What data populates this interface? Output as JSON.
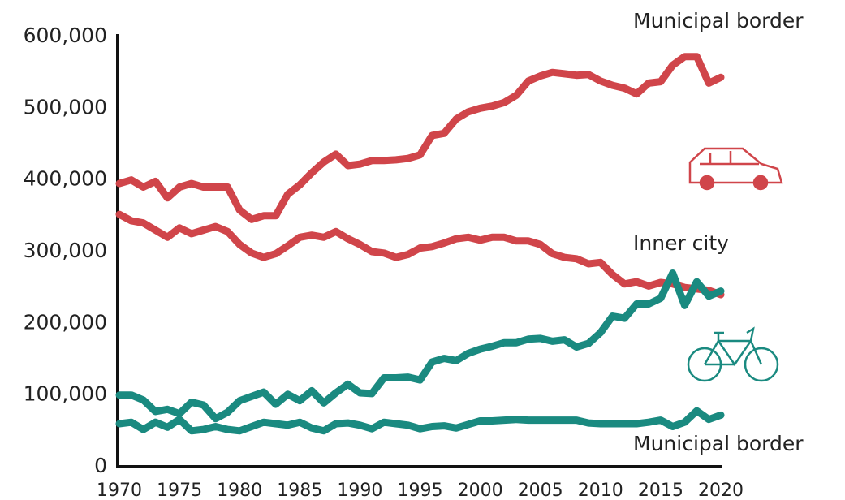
{
  "chart_data": {
    "type": "line",
    "x": [
      1970,
      1971,
      1972,
      1973,
      1974,
      1975,
      1976,
      1977,
      1978,
      1979,
      1980,
      1981,
      1982,
      1983,
      1984,
      1985,
      1986,
      1987,
      1988,
      1989,
      1990,
      1991,
      1992,
      1993,
      1994,
      1995,
      1996,
      1997,
      1998,
      1999,
      2000,
      2001,
      2002,
      2003,
      2004,
      2005,
      2006,
      2007,
      2008,
      2009,
      2010,
      2011,
      2012,
      2013,
      2014,
      2015,
      2016,
      2017,
      2018,
      2019,
      2020
    ],
    "series": [
      {
        "color": "#d0454a",
        "values": [
          395000,
          400000,
          390000,
          398000,
          375000,
          390000,
          395000,
          390000,
          390000,
          390000,
          358000,
          345000,
          350000,
          350000,
          380000,
          393000,
          410000,
          425000,
          436000,
          420000,
          422000,
          427000,
          427000,
          428000,
          430000,
          435000,
          462000,
          465000,
          485000,
          495000,
          500000,
          503000,
          508000,
          518000,
          538000,
          545000,
          550000,
          548000,
          546000,
          547000,
          538000,
          532000,
          528000,
          520000,
          535000,
          537000,
          560000,
          572000,
          572000,
          535000,
          543000
        ]
      },
      {
        "color": "#d0454a",
        "values": [
          352000,
          343000,
          340000,
          330000,
          320000,
          333000,
          325000,
          330000,
          335000,
          328000,
          310000,
          298000,
          292000,
          297000,
          308000,
          320000,
          323000,
          320000,
          328000,
          318000,
          310000,
          300000,
          298000,
          292000,
          296000,
          305000,
          307000,
          312000,
          318000,
          320000,
          316000,
          320000,
          320000,
          315000,
          315000,
          310000,
          297000,
          292000,
          290000,
          283000,
          285000,
          268000,
          255000,
          258000,
          252000,
          257000,
          255000,
          250000,
          248000,
          246000,
          240000
        ]
      },
      {
        "color": "#1a8a80",
        "values": [
          100000,
          100000,
          93000,
          77000,
          80000,
          74000,
          90000,
          86000,
          67000,
          76000,
          92000,
          98000,
          104000,
          87000,
          101000,
          92000,
          106000,
          89000,
          103000,
          115000,
          103000,
          102000,
          124000,
          124000,
          125000,
          121000,
          146000,
          151000,
          148000,
          158000,
          164000,
          168000,
          173000,
          173000,
          178000,
          179000,
          175000,
          177000,
          167000,
          172000,
          187000,
          210000,
          207000,
          227000,
          227000,
          235000,
          270000,
          225000,
          258000,
          238000,
          245000
        ]
      },
      {
        "color": "#1a8a80",
        "values": [
          60000,
          62000,
          52000,
          62000,
          55000,
          66000,
          50000,
          52000,
          56000,
          52000,
          50000,
          56000,
          62000,
          60000,
          58000,
          62000,
          54000,
          50000,
          60000,
          61000,
          58000,
          53000,
          62000,
          60000,
          58000,
          53000,
          56000,
          57000,
          54000,
          59000,
          64000,
          64000,
          65000,
          66000,
          65000,
          65000,
          65000,
          65000,
          65000,
          61000,
          60000,
          60000,
          60000,
          60000,
          62000,
          65000,
          56000,
          62000,
          78000,
          66000,
          72000
        ]
      }
    ],
    "annotations": [
      "Municipal border",
      "Inner city",
      "Municipal border"
    ],
    "xlim": [
      1970,
      2020
    ],
    "xticks": [
      1970,
      1975,
      1980,
      1985,
      1990,
      1995,
      2000,
      2005,
      2010,
      2015,
      2020
    ],
    "ylim": [
      0,
      600000
    ],
    "yticks": [
      0,
      {
        "value": 100000,
        "label": "100,000"
      },
      {
        "value": 200000,
        "label": "200,000"
      },
      {
        "value": 300000,
        "label": "300,000"
      },
      {
        "value": 400000,
        "label": "400,000"
      },
      {
        "value": 500000,
        "label": "500,000"
      },
      {
        "value": 600000,
        "label": "600,000"
      }
    ],
    "grid": false
  }
}
